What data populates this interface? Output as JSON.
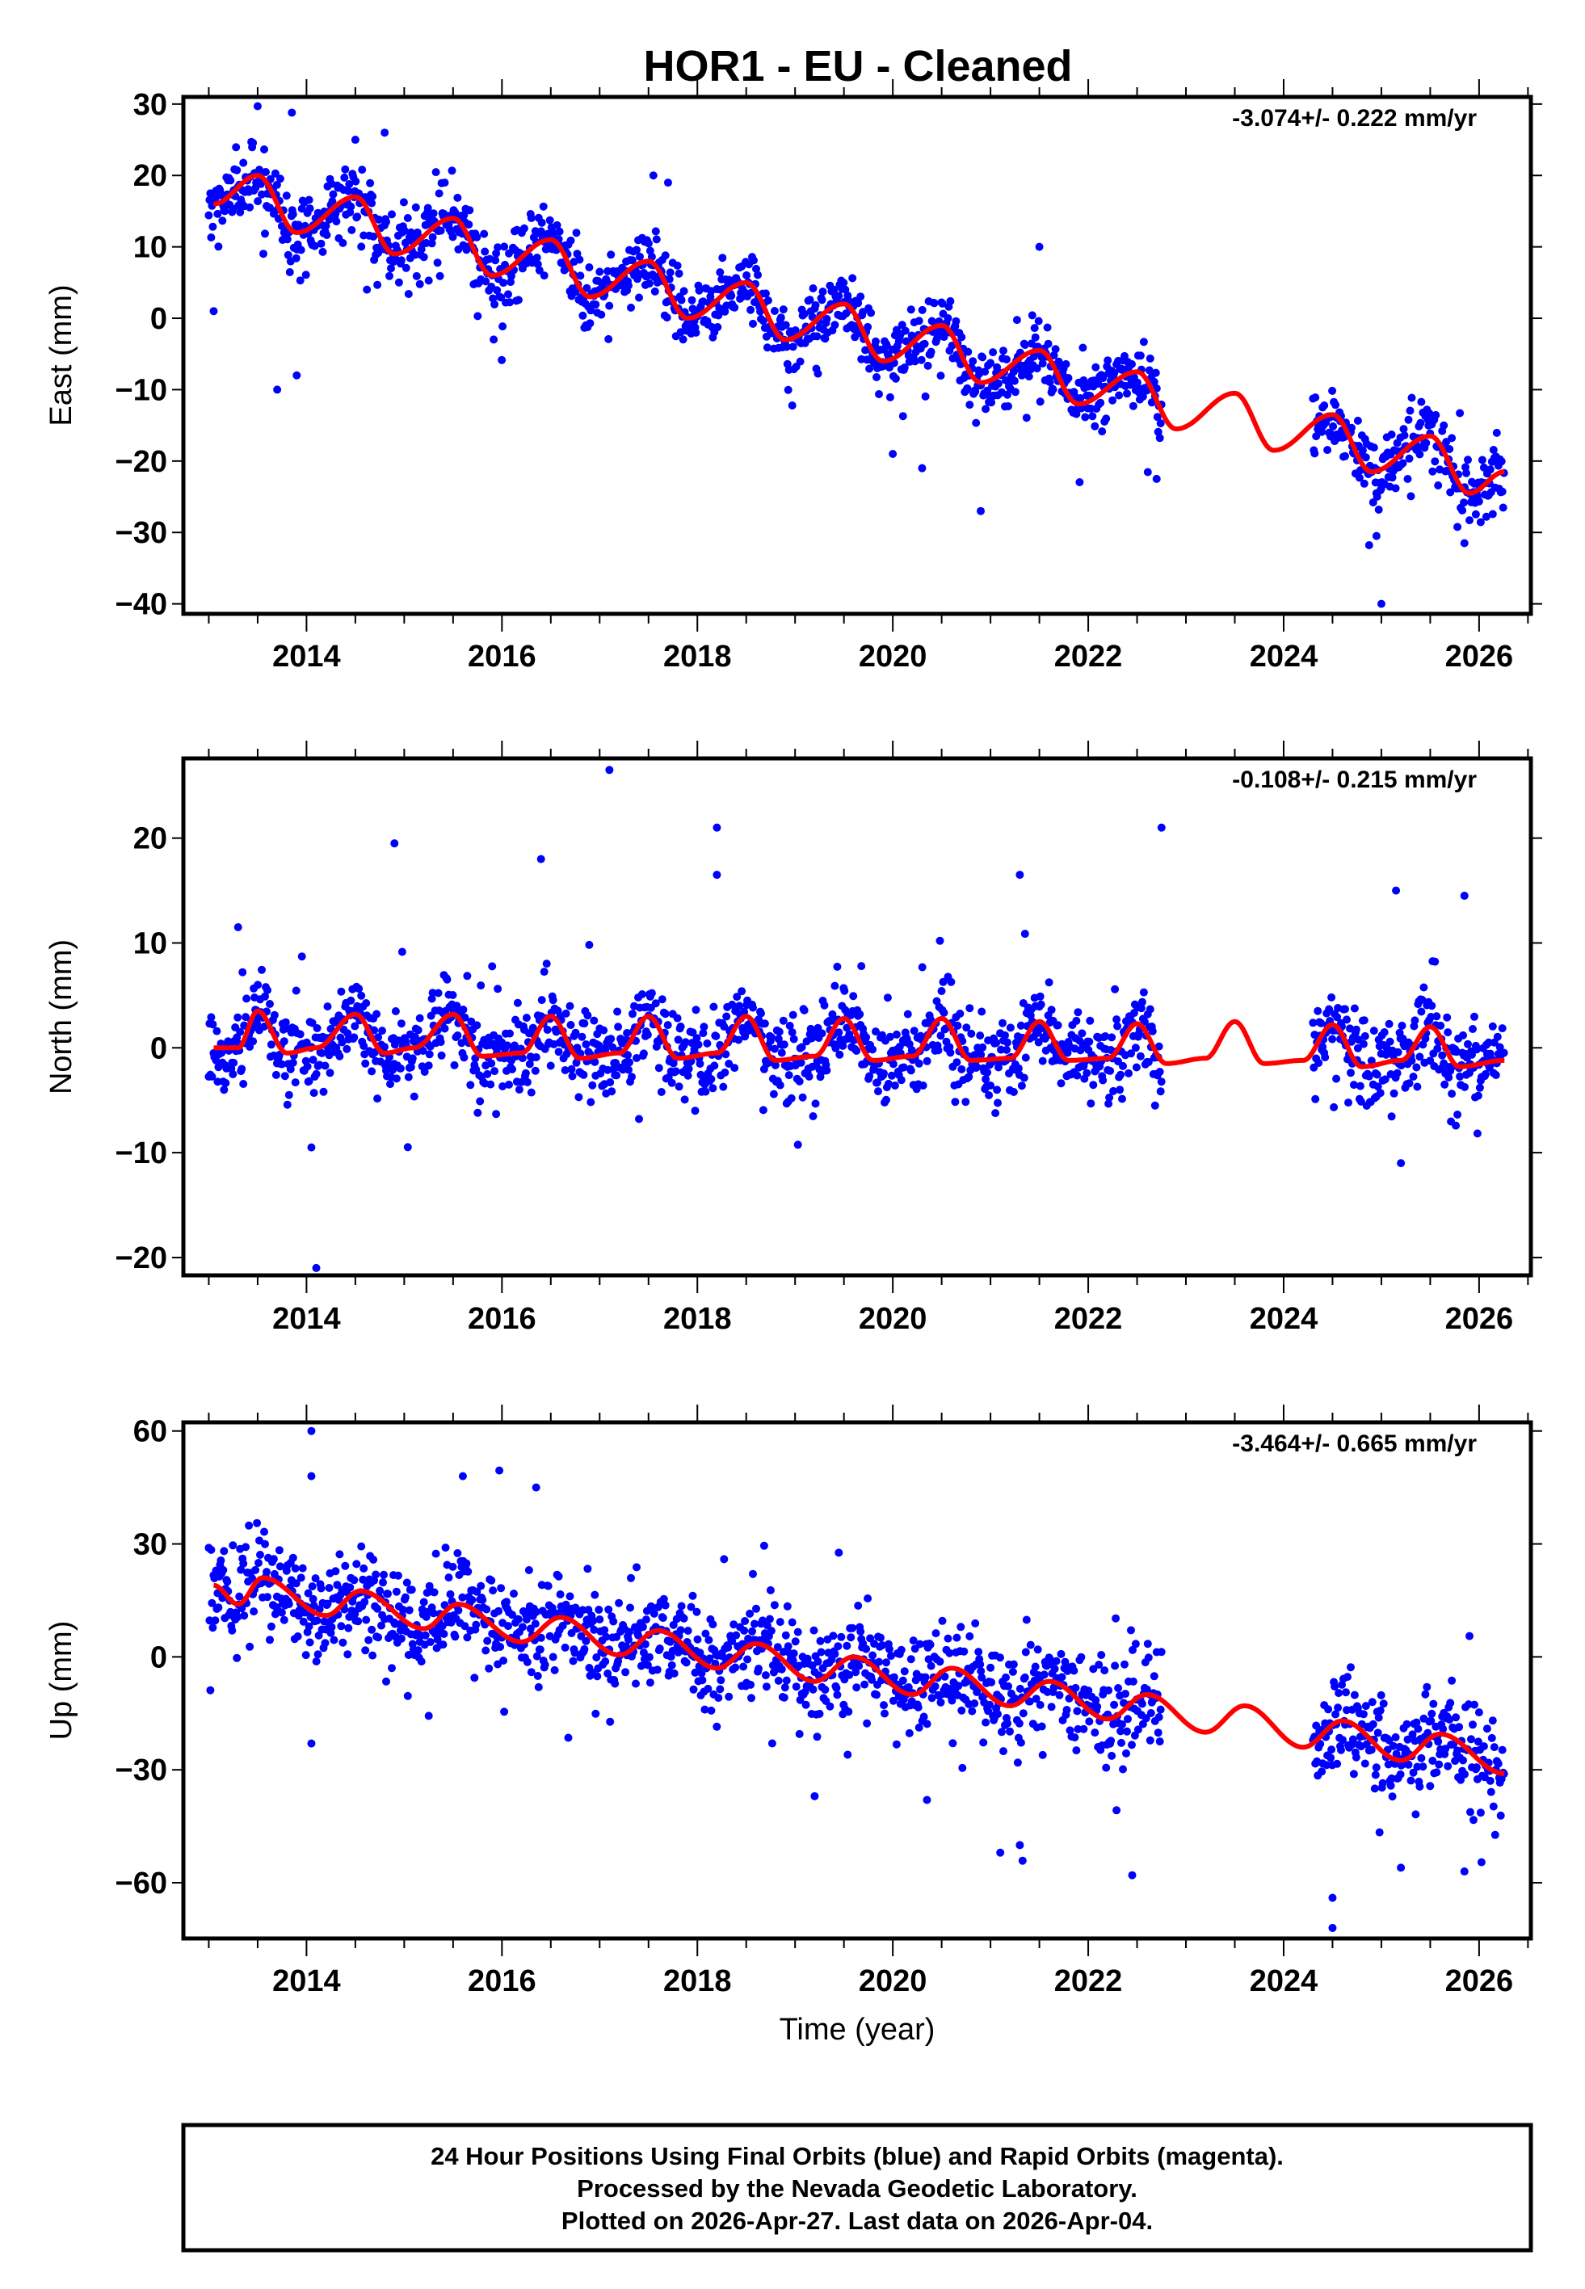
{
  "title": "HOR1  - EU - Cleaned",
  "xlabel": "Time (year)",
  "footer": {
    "line1": "24 Hour Positions Using Final Orbits (blue) and Rapid Orbits (magenta).",
    "line2": "Processed by the Nevada Geodetic Laboratory.",
    "line3": "Plotted on 2026-Apr-27. Last data on 2026-Apr-04."
  },
  "colors": {
    "points": "#0000ff",
    "fit": "#ff0000",
    "axis": "#000000"
  },
  "chart_data": [
    {
      "type": "scatter",
      "ylabel": "East (mm)",
      "rate_label": "-3.074+/- 0.222 mm/yr",
      "xlim": [
        2012.74,
        2026.53
      ],
      "ylim": [
        -41.4,
        31
      ],
      "xticks": [
        2014,
        2016,
        2018,
        2020,
        2022,
        2024,
        2026
      ],
      "xtick_labels": [
        "2014",
        "2016",
        "2018",
        "2020",
        "2022",
        "2024",
        "2026"
      ],
      "yticks": [
        30,
        20,
        10,
        0,
        -10,
        -20,
        -30,
        -40
      ],
      "ytick_labels": [
        "30",
        "20",
        "10",
        "0",
        "−10",
        "−20",
        "−30",
        "−40"
      ],
      "fit_knots": [
        [
          2013.05,
          16
        ],
        [
          2013.5,
          20
        ],
        [
          2013.9,
          12
        ],
        [
          2014.5,
          17
        ],
        [
          2014.9,
          9
        ],
        [
          2015.5,
          14
        ],
        [
          2015.9,
          6
        ],
        [
          2016.5,
          11
        ],
        [
          2016.9,
          3
        ],
        [
          2017.5,
          8
        ],
        [
          2017.9,
          0
        ],
        [
          2018.5,
          5
        ],
        [
          2018.9,
          -3
        ],
        [
          2019.5,
          2
        ],
        [
          2019.9,
          -6
        ],
        [
          2020.5,
          -1
        ],
        [
          2020.9,
          -9
        ],
        [
          2021.5,
          -4.5
        ],
        [
          2021.9,
          -12
        ],
        [
          2022.5,
          -7.5
        ],
        [
          2022.9,
          -15.5
        ],
        [
          2023.5,
          -10.5
        ],
        [
          2023.9,
          -18.5
        ],
        [
          2024.5,
          -13.5
        ],
        [
          2024.9,
          -21.5
        ],
        [
          2025.5,
          -16.5
        ],
        [
          2025.9,
          -24.5
        ],
        [
          2026.26,
          -21.5
        ]
      ],
      "scatter_std": 2.4,
      "coverage": [
        [
          2013.0,
          2022.75
        ],
        [
          2024.3,
          2026.26
        ]
      ],
      "outliers": [
        [
          2013.05,
          1
        ],
        [
          2013.7,
          -10
        ],
        [
          2013.9,
          -8
        ],
        [
          2014.5,
          25
        ],
        [
          2014.8,
          26
        ],
        [
          2013.85,
          28.8
        ],
        [
          2013.5,
          29.7
        ],
        [
          2017.7,
          19
        ],
        [
          2017.55,
          20
        ],
        [
          2021.5,
          10
        ],
        [
          2020.0,
          -19
        ],
        [
          2020.3,
          -21
        ],
        [
          2020.9,
          -27
        ],
        [
          2022.7,
          -22.5
        ],
        [
          2025.0,
          -40
        ],
        [
          2024.95,
          -30.5
        ],
        [
          2025.85,
          -31.5
        ]
      ]
    },
    {
      "type": "scatter",
      "ylabel": "North (mm)",
      "rate_label": "-0.108+/- 0.215 mm/yr",
      "xlim": [
        2012.74,
        2026.53
      ],
      "ylim": [
        -21.7,
        27.6
      ],
      "xticks": [
        2014,
        2016,
        2018,
        2020,
        2022,
        2024,
        2026
      ],
      "xtick_labels": [
        "2014",
        "2016",
        "2018",
        "2020",
        "2022",
        "2024",
        "2026"
      ],
      "yticks": [
        20,
        10,
        0,
        -10,
        -20
      ],
      "ytick_labels": [
        "20",
        "10",
        "0",
        "−10",
        "−20"
      ],
      "fit_knots": [
        [
          2013.05,
          0
        ],
        [
          2013.3,
          0
        ],
        [
          2013.5,
          3.5
        ],
        [
          2013.8,
          -0.5
        ],
        [
          2014.1,
          0
        ],
        [
          2014.5,
          3.2
        ],
        [
          2014.8,
          -0.5
        ],
        [
          2015.1,
          0
        ],
        [
          2015.5,
          3.2
        ],
        [
          2015.8,
          -0.8
        ],
        [
          2016.2,
          -0.5
        ],
        [
          2016.5,
          3
        ],
        [
          2016.8,
          -1
        ],
        [
          2017.2,
          -0.5
        ],
        [
          2017.5,
          3
        ],
        [
          2017.8,
          -1
        ],
        [
          2018.2,
          -0.5
        ],
        [
          2018.5,
          3
        ],
        [
          2018.8,
          -1.2
        ],
        [
          2019.2,
          -0.8
        ],
        [
          2019.5,
          2.8
        ],
        [
          2019.8,
          -1.2
        ],
        [
          2020.2,
          -0.8
        ],
        [
          2020.5,
          2.8
        ],
        [
          2020.8,
          -1.2
        ],
        [
          2021.2,
          -1
        ],
        [
          2021.5,
          2.5
        ],
        [
          2021.8,
          -1.2
        ],
        [
          2022.2,
          -1
        ],
        [
          2022.5,
          2.3
        ],
        [
          2022.8,
          -1.5
        ],
        [
          2023.2,
          -1
        ],
        [
          2023.5,
          2.5
        ],
        [
          2023.8,
          -1.5
        ],
        [
          2024.2,
          -1.2
        ],
        [
          2024.5,
          2.2
        ],
        [
          2024.8,
          -1.8
        ],
        [
          2025.2,
          -1.2
        ],
        [
          2025.5,
          2
        ],
        [
          2025.8,
          -1.8
        ],
        [
          2026.26,
          -1.2
        ]
      ],
      "scatter_std": 2.0,
      "coverage": [
        [
          2013.0,
          2022.75
        ],
        [
          2024.3,
          2026.26
        ]
      ],
      "outliers": [
        [
          2017.1,
          26.5
        ],
        [
          2018.2,
          21
        ],
        [
          2022.75,
          21
        ],
        [
          2014.1,
          -21
        ],
        [
          2014.05,
          -9.5
        ],
        [
          2014.9,
          19.5
        ],
        [
          2025.15,
          15
        ],
        [
          2025.85,
          14.5
        ],
        [
          2025.2,
          -11
        ],
        [
          2013.3,
          11.5
        ],
        [
          2016.4,
          18
        ],
        [
          2018.2,
          16.5
        ],
        [
          2021.3,
          16.5
        ]
      ]
    },
    {
      "type": "scatter",
      "ylabel": "Up (mm)",
      "rate_label": "-3.464+/- 0.665 mm/yr",
      "xlim": [
        2012.74,
        2026.53
      ],
      "ylim": [
        -74.8,
        62.3
      ],
      "xticks": [
        2014,
        2016,
        2018,
        2020,
        2022,
        2024,
        2026
      ],
      "xtick_labels": [
        "2014",
        "2016",
        "2018",
        "2020",
        "2022",
        "2024",
        "2026"
      ],
      "yticks": [
        60,
        30,
        0,
        -30,
        -60
      ],
      "ytick_labels": [
        "60",
        "30",
        "0",
        "−30",
        "−60"
      ],
      "fit_knots": [
        [
          2013.05,
          19
        ],
        [
          2013.3,
          14
        ],
        [
          2013.55,
          21
        ],
        [
          2014.2,
          11
        ],
        [
          2014.55,
          17.5
        ],
        [
          2015.2,
          7.5
        ],
        [
          2015.55,
          14
        ],
        [
          2016.2,
          4
        ],
        [
          2016.6,
          10.5
        ],
        [
          2017.2,
          0.5
        ],
        [
          2017.6,
          7
        ],
        [
          2018.2,
          -3
        ],
        [
          2018.6,
          3.5
        ],
        [
          2019.2,
          -6.5
        ],
        [
          2019.6,
          0
        ],
        [
          2020.2,
          -10
        ],
        [
          2020.6,
          -3
        ],
        [
          2021.2,
          -13
        ],
        [
          2021.6,
          -6.5
        ],
        [
          2022.2,
          -16.5
        ],
        [
          2022.6,
          -10
        ],
        [
          2023.2,
          -20
        ],
        [
          2023.6,
          -13
        ],
        [
          2024.2,
          -24
        ],
        [
          2024.6,
          -17
        ],
        [
          2025.2,
          -27.5
        ],
        [
          2025.6,
          -20.5
        ],
        [
          2026.26,
          -31
        ]
      ],
      "scatter_std": 6.5,
      "coverage": [
        [
          2013.0,
          2022.75
        ],
        [
          2024.3,
          2026.26
        ]
      ],
      "outliers": [
        [
          2014.05,
          60
        ],
        [
          2014.05,
          48
        ],
        [
          2015.6,
          48
        ],
        [
          2016.35,
          45
        ],
        [
          2014.05,
          -23
        ],
        [
          2021.1,
          -52
        ],
        [
          2021.3,
          -50
        ],
        [
          2022.45,
          -58
        ],
        [
          2024.5,
          -64
        ],
        [
          2024.5,
          -72
        ],
        [
          2025.2,
          -56
        ],
        [
          2025.85,
          -57
        ],
        [
          2019.2,
          -37
        ],
        [
          2020.35,
          -38
        ]
      ]
    }
  ]
}
